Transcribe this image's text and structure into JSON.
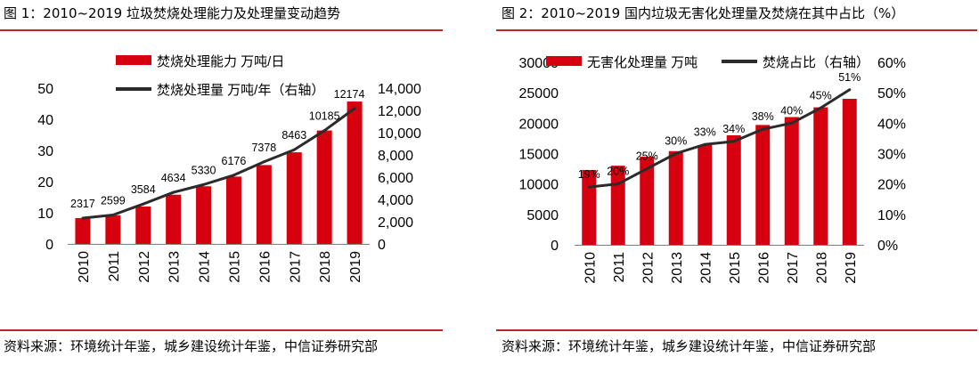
{
  "colors": {
    "bar": "#d7000f",
    "line": "#2b2b2b",
    "rule": "#b8252d"
  },
  "figures": [
    {
      "title": "图 1：2010~2019 垃圾焚烧处理能力及处理量变动趋势",
      "source": "资料来源：环境统计年鉴，城乡建设统计年鉴，中信证券研究部"
    },
    {
      "title": "图 2：2010~2019 国内垃圾无害化处理量及焚烧在其中占比（%）",
      "source": "资料来源：环境统计年鉴，城乡建设统计年鉴，中信证券研究部"
    }
  ],
  "chart_data": [
    {
      "type": "bar",
      "categories": [
        "2010",
        "2011",
        "2012",
        "2013",
        "2014",
        "2015",
        "2016",
        "2017",
        "2018",
        "2019"
      ],
      "series": [
        {
          "name": "焚烧处理能力 万吨/日",
          "kind": "bar",
          "axis": "left",
          "values": [
            8.3,
            9.2,
            12.0,
            15.8,
            18.5,
            21.6,
            25.3,
            29.4,
            36.4,
            45.7
          ]
        },
        {
          "name": "焚烧处理量 万吨/年（右轴）",
          "kind": "line",
          "axis": "right",
          "values": [
            2317,
            2599,
            3584,
            4634,
            5330,
            6176,
            7378,
            8463,
            10185,
            12174
          ],
          "labels": [
            "2317",
            "2599",
            "3584",
            "4634",
            "5330",
            "6176",
            "7378",
            "8463",
            "10185",
            "12174"
          ]
        }
      ],
      "left_axis": {
        "ylim": [
          0,
          50
        ],
        "ticks": [
          "0",
          "10",
          "20",
          "30",
          "40",
          "50"
        ]
      },
      "right_axis": {
        "ylim": [
          0,
          14000
        ],
        "ticks": [
          "0",
          "2,000",
          "4,000",
          "6,000",
          "8,000",
          "10,000",
          "12,000",
          "14,000"
        ]
      },
      "legend": "top",
      "grid": false
    },
    {
      "type": "bar",
      "categories": [
        "2010",
        "2011",
        "2012",
        "2013",
        "2014",
        "2015",
        "2016",
        "2017",
        "2018",
        "2019"
      ],
      "series": [
        {
          "name": "无害化处理量 万吨",
          "kind": "bar",
          "axis": "left",
          "values": [
            12300,
            13000,
            14500,
            15400,
            16400,
            18000,
            19700,
            21000,
            22600,
            24000
          ]
        },
        {
          "name": "焚烧占比（右轴）",
          "kind": "line",
          "axis": "right",
          "values": [
            19,
            20,
            25,
            30,
            33,
            34,
            38,
            40,
            45,
            51
          ],
          "labels": [
            "19%",
            "20%",
            "25%",
            "30%",
            "33%",
            "34%",
            "38%",
            "40%",
            "45%",
            "51%"
          ]
        }
      ],
      "left_axis": {
        "ylim": [
          0,
          30000
        ],
        "ticks": [
          "0",
          "5000",
          "10000",
          "15000",
          "20000",
          "25000",
          "30000"
        ]
      },
      "right_axis": {
        "ylim": [
          0,
          60
        ],
        "ticks": [
          "0%",
          "10%",
          "20%",
          "30%",
          "40%",
          "50%",
          "60%"
        ]
      },
      "legend": "top",
      "grid": false
    }
  ]
}
